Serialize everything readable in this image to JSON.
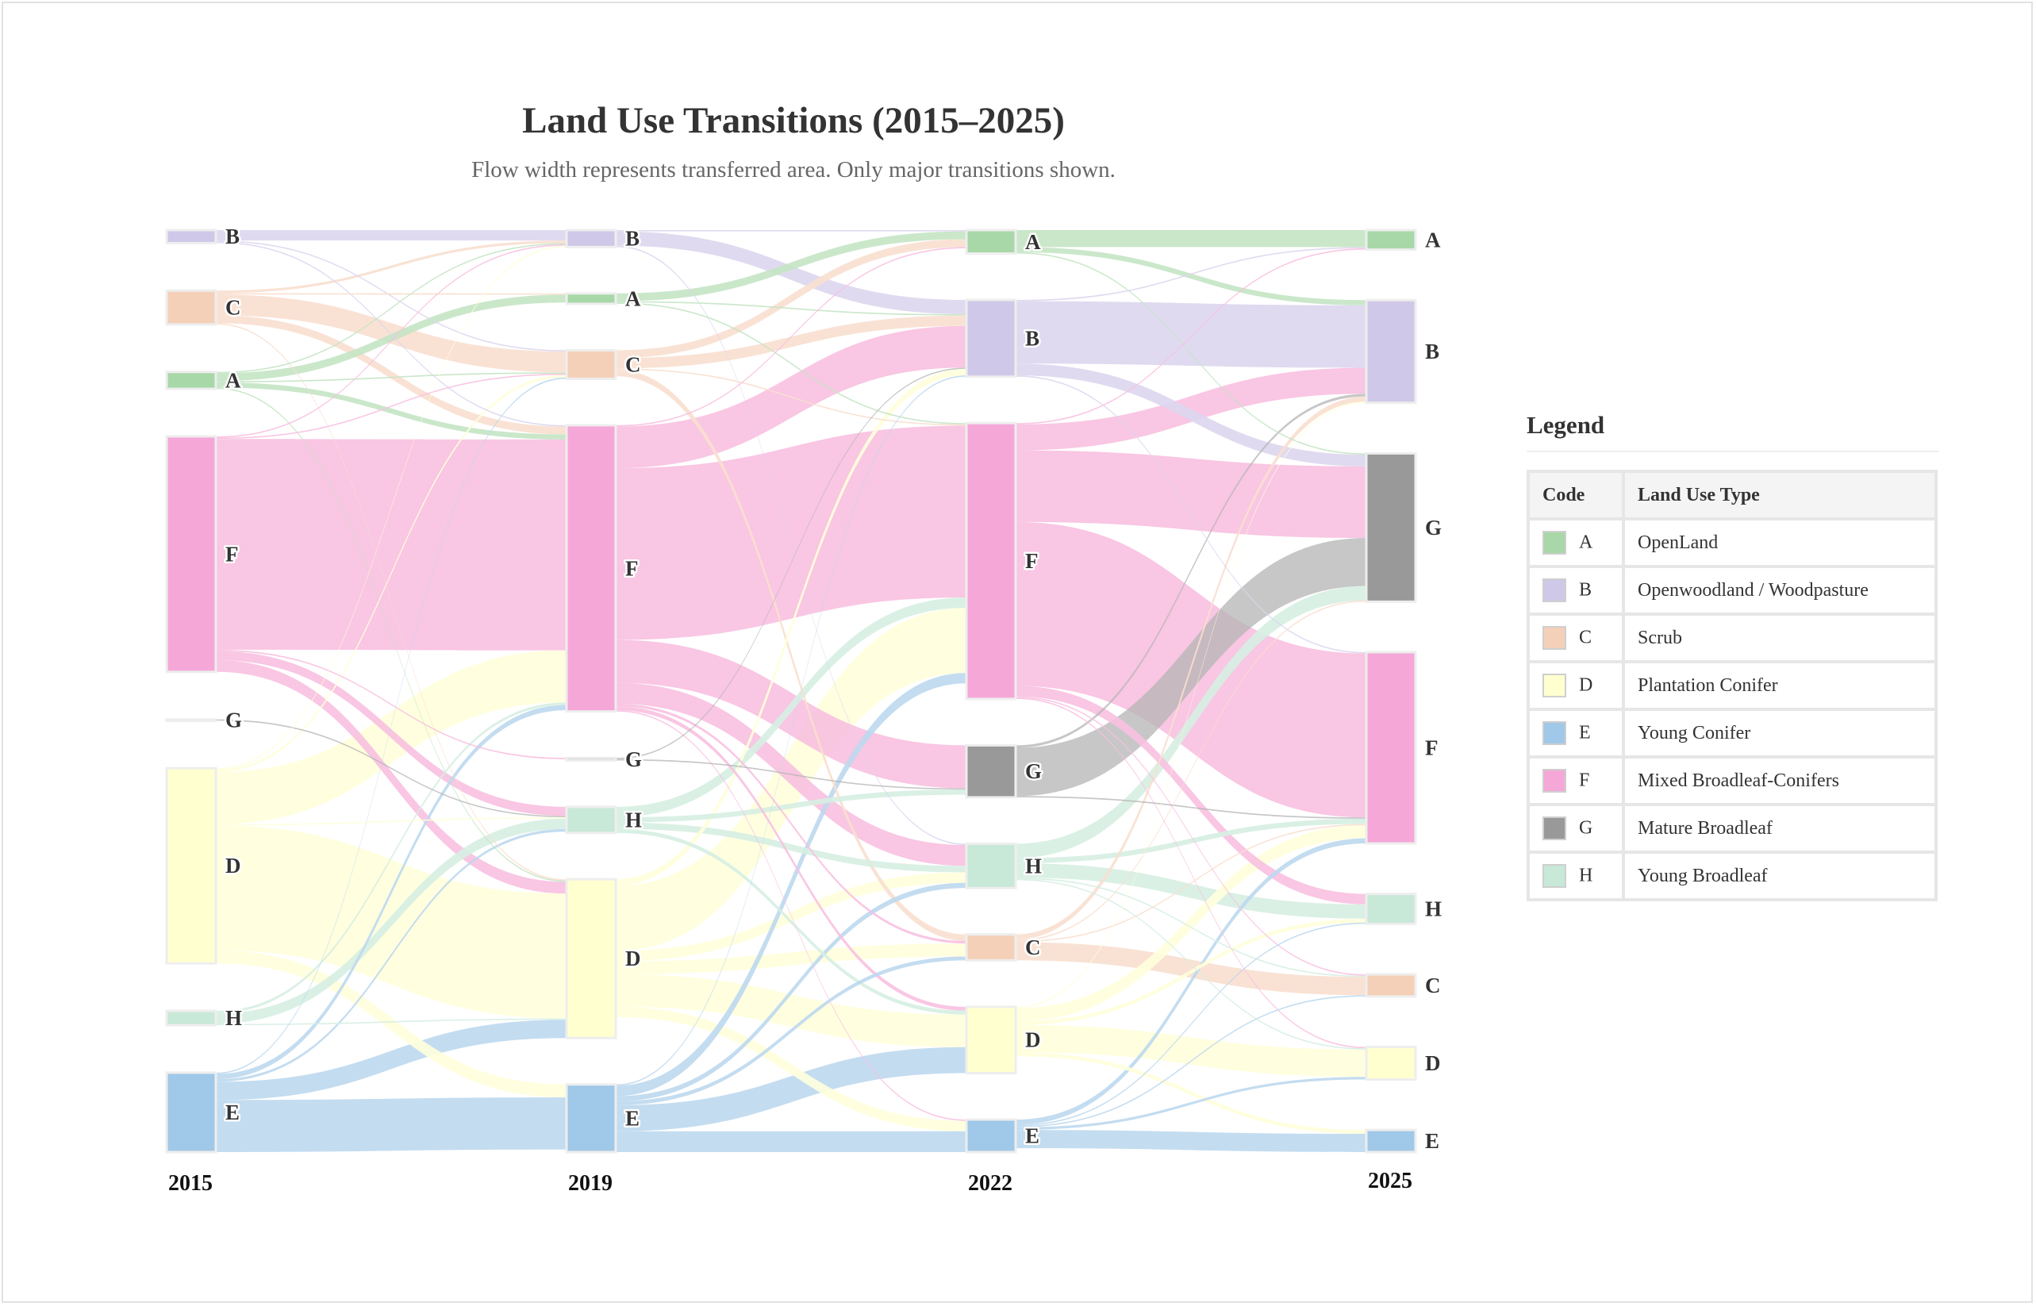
{
  "title": "Land Use Transitions (2015–2025)",
  "subtitle": "Flow width represents transferred area. Only major transitions shown.",
  "legend": {
    "title": "Legend",
    "header_code": "Code",
    "header_type": "Land Use Type",
    "items": [
      {
        "code": "A",
        "label": "OpenLand",
        "color": "#a8d8a8"
      },
      {
        "code": "B",
        "label": "Openwoodland / Woodpasture",
        "color": "#d0c8e8"
      },
      {
        "code": "C",
        "label": "Scrub",
        "color": "#f5d0b8"
      },
      {
        "code": "D",
        "label": "Plantation Conifer",
        "color": "#ffffd0"
      },
      {
        "code": "E",
        "label": "Young Conifer",
        "color": "#a0c8e8"
      },
      {
        "code": "F",
        "label": "Mixed Broadleaf-Conifers",
        "color": "#f5a8d8"
      },
      {
        "code": "G",
        "label": "Mature Broadleaf",
        "color": "#999999"
      },
      {
        "code": "H",
        "label": "Young Broadleaf",
        "color": "#c8e8d8"
      }
    ]
  },
  "chart_data": {
    "type": "sankey",
    "title": "Land Use Transitions (2015–2025)",
    "subtitle": "Flow width represents transferred area. Only major transitions shown.",
    "columns": [
      "2015",
      "2019",
      "2022",
      "2025"
    ],
    "node_order": [
      [
        "B",
        "C",
        "A",
        "F",
        "G",
        "D",
        "H",
        "E"
      ],
      [
        "B",
        "A",
        "C",
        "F",
        "G",
        "H",
        "D",
        "E"
      ],
      [
        "A",
        "B",
        "F",
        "G",
        "H",
        "C",
        "D",
        "E"
      ],
      [
        "A",
        "B",
        "G",
        "F",
        "H",
        "C",
        "D",
        "E"
      ]
    ],
    "flows": [
      {
        "from": [
          0,
          "B"
        ],
        "to": [
          1,
          "B"
        ],
        "value": 8
      },
      {
        "from": [
          0,
          "B"
        ],
        "to": [
          1,
          "C"
        ],
        "value": 1
      },
      {
        "from": [
          0,
          "B"
        ],
        "to": [
          1,
          "F"
        ],
        "value": 1
      },
      {
        "from": [
          0,
          "C"
        ],
        "to": [
          1,
          "B"
        ],
        "value": 2
      },
      {
        "from": [
          0,
          "C"
        ],
        "to": [
          1,
          "A"
        ],
        "value": 1
      },
      {
        "from": [
          0,
          "C"
        ],
        "to": [
          1,
          "C"
        ],
        "value": 16
      },
      {
        "from": [
          0,
          "C"
        ],
        "to": [
          1,
          "F"
        ],
        "value": 6
      },
      {
        "from": [
          0,
          "C"
        ],
        "to": [
          1,
          "D"
        ],
        "value": 1
      },
      {
        "from": [
          0,
          "A"
        ],
        "to": [
          1,
          "B"
        ],
        "value": 1
      },
      {
        "from": [
          0,
          "A"
        ],
        "to": [
          1,
          "A"
        ],
        "value": 6
      },
      {
        "from": [
          0,
          "A"
        ],
        "to": [
          1,
          "C"
        ],
        "value": 1
      },
      {
        "from": [
          0,
          "A"
        ],
        "to": [
          1,
          "F"
        ],
        "value": 4
      },
      {
        "from": [
          0,
          "A"
        ],
        "to": [
          1,
          "D"
        ],
        "value": 1
      },
      {
        "from": [
          0,
          "F"
        ],
        "to": [
          1,
          "B"
        ],
        "value": 1
      },
      {
        "from": [
          0,
          "F"
        ],
        "to": [
          1,
          "C"
        ],
        "value": 1
      },
      {
        "from": [
          0,
          "F"
        ],
        "to": [
          1,
          "F"
        ],
        "value": 162
      },
      {
        "from": [
          0,
          "F"
        ],
        "to": [
          1,
          "G"
        ],
        "value": 1
      },
      {
        "from": [
          0,
          "F"
        ],
        "to": [
          1,
          "H"
        ],
        "value": 7
      },
      {
        "from": [
          0,
          "F"
        ],
        "to": [
          1,
          "D"
        ],
        "value": 9
      },
      {
        "from": [
          0,
          "G"
        ],
        "to": [
          1,
          "H"
        ],
        "value": 1
      },
      {
        "from": [
          0,
          "D"
        ],
        "to": [
          1,
          "B"
        ],
        "value": 1
      },
      {
        "from": [
          0,
          "D"
        ],
        "to": [
          1,
          "C"
        ],
        "value": 2
      },
      {
        "from": [
          0,
          "D"
        ],
        "to": [
          1,
          "F"
        ],
        "value": 40
      },
      {
        "from": [
          0,
          "D"
        ],
        "to": [
          1,
          "H"
        ],
        "value": 1
      },
      {
        "from": [
          0,
          "D"
        ],
        "to": [
          1,
          "D"
        ],
        "value": 96
      },
      {
        "from": [
          0,
          "D"
        ],
        "to": [
          1,
          "E"
        ],
        "value": 10
      },
      {
        "from": [
          0,
          "H"
        ],
        "to": [
          1,
          "F"
        ],
        "value": 2
      },
      {
        "from": [
          0,
          "H"
        ],
        "to": [
          1,
          "H"
        ],
        "value": 8
      },
      {
        "from": [
          0,
          "H"
        ],
        "to": [
          1,
          "D"
        ],
        "value": 1
      },
      {
        "from": [
          0,
          "E"
        ],
        "to": [
          1,
          "C"
        ],
        "value": 1
      },
      {
        "from": [
          0,
          "E"
        ],
        "to": [
          1,
          "F"
        ],
        "value": 4
      },
      {
        "from": [
          0,
          "E"
        ],
        "to": [
          1,
          "H"
        ],
        "value": 2
      },
      {
        "from": [
          0,
          "E"
        ],
        "to": [
          1,
          "D"
        ],
        "value": 14
      },
      {
        "from": [
          0,
          "E"
        ],
        "to": [
          1,
          "E"
        ],
        "value": 40
      },
      {
        "from": [
          1,
          "B"
        ],
        "to": [
          2,
          "A"
        ],
        "value": 1
      },
      {
        "from": [
          1,
          "B"
        ],
        "to": [
          2,
          "B"
        ],
        "value": 11
      },
      {
        "from": [
          1,
          "B"
        ],
        "to": [
          2,
          "H"
        ],
        "value": 1
      },
      {
        "from": [
          1,
          "A"
        ],
        "to": [
          2,
          "A"
        ],
        "value": 6
      },
      {
        "from": [
          1,
          "A"
        ],
        "to": [
          2,
          "B"
        ],
        "value": 1
      },
      {
        "from": [
          1,
          "A"
        ],
        "to": [
          2,
          "F"
        ],
        "value": 1
      },
      {
        "from": [
          1,
          "C"
        ],
        "to": [
          2,
          "A"
        ],
        "value": 6
      },
      {
        "from": [
          1,
          "C"
        ],
        "to": [
          2,
          "B"
        ],
        "value": 8
      },
      {
        "from": [
          1,
          "C"
        ],
        "to": [
          2,
          "F"
        ],
        "value": 1
      },
      {
        "from": [
          1,
          "C"
        ],
        "to": [
          2,
          "C"
        ],
        "value": 5
      },
      {
        "from": [
          1,
          "F"
        ],
        "to": [
          2,
          "A"
        ],
        "value": 1
      },
      {
        "from": [
          1,
          "F"
        ],
        "to": [
          2,
          "B"
        ],
        "value": 32
      },
      {
        "from": [
          1,
          "F"
        ],
        "to": [
          2,
          "F"
        ],
        "value": 132
      },
      {
        "from": [
          1,
          "F"
        ],
        "to": [
          2,
          "G"
        ],
        "value": 33
      },
      {
        "from": [
          1,
          "F"
        ],
        "to": [
          2,
          "H"
        ],
        "value": 16
      },
      {
        "from": [
          1,
          "F"
        ],
        "to": [
          2,
          "C"
        ],
        "value": 2
      },
      {
        "from": [
          1,
          "F"
        ],
        "to": [
          2,
          "D"
        ],
        "value": 3
      },
      {
        "from": [
          1,
          "F"
        ],
        "to": [
          2,
          "E"
        ],
        "value": 1
      },
      {
        "from": [
          1,
          "G"
        ],
        "to": [
          2,
          "B"
        ],
        "value": 1
      },
      {
        "from": [
          1,
          "G"
        ],
        "to": [
          2,
          "G"
        ],
        "value": 1
      },
      {
        "from": [
          1,
          "H"
        ],
        "to": [
          2,
          "F"
        ],
        "value": 8
      },
      {
        "from": [
          1,
          "H"
        ],
        "to": [
          2,
          "G"
        ],
        "value": 4
      },
      {
        "from": [
          1,
          "H"
        ],
        "to": [
          2,
          "H"
        ],
        "value": 5
      },
      {
        "from": [
          1,
          "H"
        ],
        "to": [
          2,
          "D"
        ],
        "value": 3
      },
      {
        "from": [
          1,
          "D"
        ],
        "to": [
          2,
          "B"
        ],
        "value": 5
      },
      {
        "from": [
          1,
          "D"
        ],
        "to": [
          2,
          "F"
        ],
        "value": 50
      },
      {
        "from": [
          1,
          "D"
        ],
        "to": [
          2,
          "H"
        ],
        "value": 8
      },
      {
        "from": [
          1,
          "D"
        ],
        "to": [
          2,
          "C"
        ],
        "value": 10
      },
      {
        "from": [
          1,
          "D"
        ],
        "to": [
          2,
          "D"
        ],
        "value": 25
      },
      {
        "from": [
          1,
          "D"
        ],
        "to": [
          2,
          "E"
        ],
        "value": 8
      },
      {
        "from": [
          1,
          "E"
        ],
        "to": [
          2,
          "B"
        ],
        "value": 1
      },
      {
        "from": [
          1,
          "E"
        ],
        "to": [
          2,
          "F"
        ],
        "value": 8
      },
      {
        "from": [
          1,
          "E"
        ],
        "to": [
          2,
          "H"
        ],
        "value": 4
      },
      {
        "from": [
          1,
          "E"
        ],
        "to": [
          2,
          "C"
        ],
        "value": 3
      },
      {
        "from": [
          1,
          "E"
        ],
        "to": [
          2,
          "D"
        ],
        "value": 20
      },
      {
        "from": [
          1,
          "E"
        ],
        "to": [
          2,
          "E"
        ],
        "value": 16
      },
      {
        "from": [
          2,
          "A"
        ],
        "to": [
          3,
          "A"
        ],
        "value": 13
      },
      {
        "from": [
          2,
          "A"
        ],
        "to": [
          3,
          "B"
        ],
        "value": 4
      },
      {
        "from": [
          2,
          "A"
        ],
        "to": [
          3,
          "G"
        ],
        "value": 1
      },
      {
        "from": [
          2,
          "B"
        ],
        "to": [
          3,
          "A"
        ],
        "value": 1
      },
      {
        "from": [
          2,
          "B"
        ],
        "to": [
          3,
          "B"
        ],
        "value": 48
      },
      {
        "from": [
          2,
          "B"
        ],
        "to": [
          3,
          "G"
        ],
        "value": 9
      },
      {
        "from": [
          2,
          "B"
        ],
        "to": [
          3,
          "F"
        ],
        "value": 1
      },
      {
        "from": [
          2,
          "F"
        ],
        "to": [
          3,
          "A"
        ],
        "value": 1
      },
      {
        "from": [
          2,
          "F"
        ],
        "to": [
          3,
          "B"
        ],
        "value": 20
      },
      {
        "from": [
          2,
          "F"
        ],
        "to": [
          3,
          "G"
        ],
        "value": 55
      },
      {
        "from": [
          2,
          "F"
        ],
        "to": [
          3,
          "F"
        ],
        "value": 126
      },
      {
        "from": [
          2,
          "F"
        ],
        "to": [
          3,
          "H"
        ],
        "value": 8
      },
      {
        "from": [
          2,
          "F"
        ],
        "to": [
          3,
          "C"
        ],
        "value": 1
      },
      {
        "from": [
          2,
          "F"
        ],
        "to": [
          3,
          "D"
        ],
        "value": 1
      },
      {
        "from": [
          2,
          "G"
        ],
        "to": [
          3,
          "B"
        ],
        "value": 2
      },
      {
        "from": [
          2,
          "G"
        ],
        "to": [
          3,
          "G"
        ],
        "value": 37
      },
      {
        "from": [
          2,
          "G"
        ],
        "to": [
          3,
          "F"
        ],
        "value": 1
      },
      {
        "from": [
          2,
          "H"
        ],
        "to": [
          3,
          "G"
        ],
        "value": 11
      },
      {
        "from": [
          2,
          "H"
        ],
        "to": [
          3,
          "F"
        ],
        "value": 4
      },
      {
        "from": [
          2,
          "H"
        ],
        "to": [
          3,
          "H"
        ],
        "value": 11
      },
      {
        "from": [
          2,
          "H"
        ],
        "to": [
          3,
          "C"
        ],
        "value": 1
      },
      {
        "from": [
          2,
          "H"
        ],
        "to": [
          3,
          "D"
        ],
        "value": 1
      },
      {
        "from": [
          2,
          "C"
        ],
        "to": [
          3,
          "B"
        ],
        "value": 4
      },
      {
        "from": [
          2,
          "C"
        ],
        "to": [
          3,
          "G"
        ],
        "value": 1
      },
      {
        "from": [
          2,
          "C"
        ],
        "to": [
          3,
          "F"
        ],
        "value": 1
      },
      {
        "from": [
          2,
          "C"
        ],
        "to": [
          3,
          "C"
        ],
        "value": 14
      },
      {
        "from": [
          2,
          "D"
        ],
        "to": [
          3,
          "B"
        ],
        "value": 1
      },
      {
        "from": [
          2,
          "D"
        ],
        "to": [
          3,
          "F"
        ],
        "value": 10
      },
      {
        "from": [
          2,
          "D"
        ],
        "to": [
          3,
          "H"
        ],
        "value": 3
      },
      {
        "from": [
          2,
          "D"
        ],
        "to": [
          3,
          "D"
        ],
        "value": 21
      },
      {
        "from": [
          2,
          "D"
        ],
        "to": [
          3,
          "E"
        ],
        "value": 3
      },
      {
        "from": [
          2,
          "E"
        ],
        "to": [
          3,
          "F"
        ],
        "value": 4
      },
      {
        "from": [
          2,
          "E"
        ],
        "to": [
          3,
          "H"
        ],
        "value": 1
      },
      {
        "from": [
          2,
          "E"
        ],
        "to": [
          3,
          "C"
        ],
        "value": 1
      },
      {
        "from": [
          2,
          "E"
        ],
        "to": [
          3,
          "D"
        ],
        "value": 2
      },
      {
        "from": [
          2,
          "E"
        ],
        "to": [
          3,
          "E"
        ],
        "value": 14
      }
    ]
  }
}
